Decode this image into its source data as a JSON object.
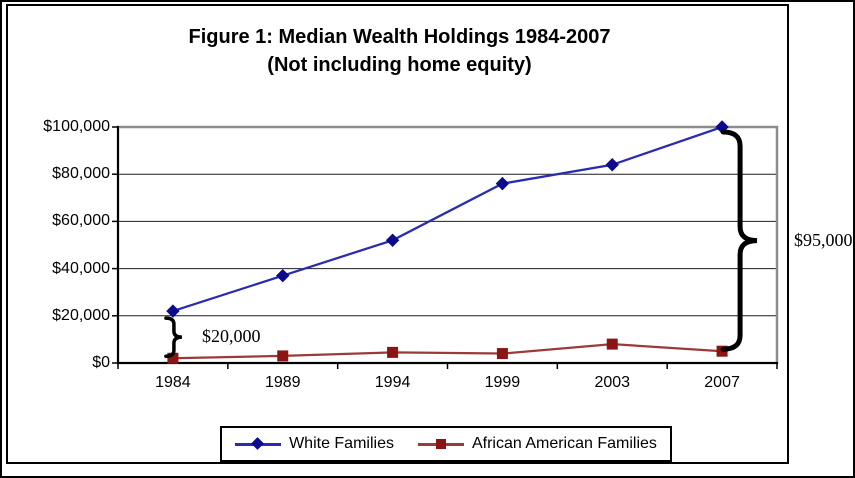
{
  "figure": {
    "title_line1": "Figure 1: Median Wealth Holdings 1984-2007",
    "title_line2": "(Not including home equity)"
  },
  "chart_data": {
    "type": "line",
    "title": "Figure 1: Median Wealth Holdings 1984-2007 (Not including home equity)",
    "categories": [
      "1984",
      "1989",
      "1994",
      "1999",
      "2003",
      "2007"
    ],
    "series": [
      {
        "name": "White Families",
        "values": [
          22000,
          37000,
          52000,
          76000,
          84000,
          100000
        ],
        "line_color": "#2B2BB2",
        "marker_color": "#0B0B8B",
        "marker": "diamond"
      },
      {
        "name": "African American Families",
        "values": [
          2000,
          3000,
          4500,
          4000,
          8000,
          5000
        ],
        "line_color": "#9C3A3A",
        "marker_color": "#8B1414",
        "marker": "square"
      }
    ],
    "xlabel": "",
    "ylabel": "",
    "ylim": [
      0,
      100000
    ],
    "ytick_values": [
      0,
      20000,
      40000,
      60000,
      80000,
      100000
    ],
    "ytick_labels": [
      "$0",
      "$20,000",
      "$40,000",
      "$60,000",
      "$80,000",
      "$100,000"
    ],
    "grid": true,
    "legend_position": "bottom",
    "annotations": [
      {
        "text": "$20,000",
        "type": "brace",
        "category_index": 0,
        "meaning": "wealth gap in 1984"
      },
      {
        "text": "$95,000",
        "type": "brace",
        "category_index": 5,
        "meaning": "wealth gap in 2007"
      }
    ],
    "colors": {
      "gridline": "#1f1f1f",
      "plot_border": "#8C8C8C",
      "axis": "#000000",
      "brace": "#000000"
    }
  }
}
